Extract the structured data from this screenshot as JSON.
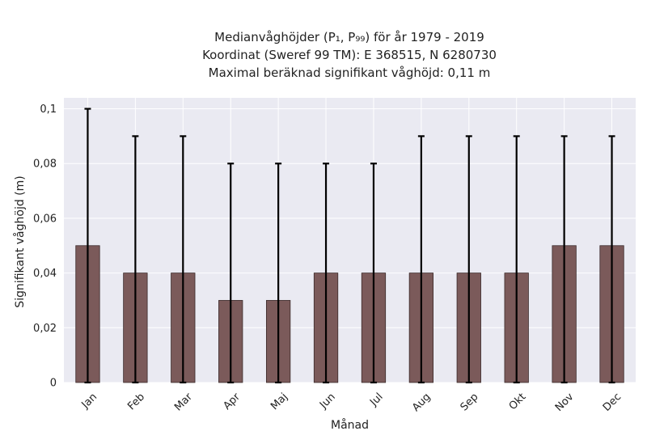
{
  "chart_data": {
    "type": "bar",
    "title": [
      "Medianvåghöjder (P₁, P₉₉) för år 1979 - 2019",
      "Koordinat (Sweref 99 TM): E 368515, N 6280730",
      "Maximal beräknad signifikant våghöjd: 0,11 m"
    ],
    "xlabel": "Månad",
    "ylabel": "Signifikant våghöjd (m)",
    "categories": [
      "Jan",
      "Feb",
      "Mar",
      "Apr",
      "Maj",
      "Jun",
      "Jul",
      "Aug",
      "Sep",
      "Okt",
      "Nov",
      "Dec"
    ],
    "values": [
      0.05,
      0.04,
      0.04,
      0.03,
      0.03,
      0.04,
      0.04,
      0.04,
      0.04,
      0.04,
      0.05,
      0.05
    ],
    "error_low": [
      0,
      0,
      0,
      0,
      0,
      0,
      0,
      0,
      0,
      0,
      0,
      0
    ],
    "error_high": [
      0.1,
      0.09,
      0.09,
      0.08,
      0.08,
      0.08,
      0.08,
      0.09,
      0.09,
      0.09,
      0.09,
      0.09
    ],
    "ylim": [
      0,
      0.104
    ],
    "yticks": [
      0,
      0.02,
      0.04,
      0.06,
      0.08,
      0.1
    ],
    "ytick_labels": [
      "0",
      "0,02",
      "0,04",
      "0,06",
      "0,08",
      "0,1"
    ],
    "grid": true,
    "colors": {
      "background": "#eaeaf2",
      "bar": "#7b5a5a",
      "bar_edge": "#3a2a2a",
      "grid": "#ffffff",
      "errorbar": "#000000"
    }
  }
}
